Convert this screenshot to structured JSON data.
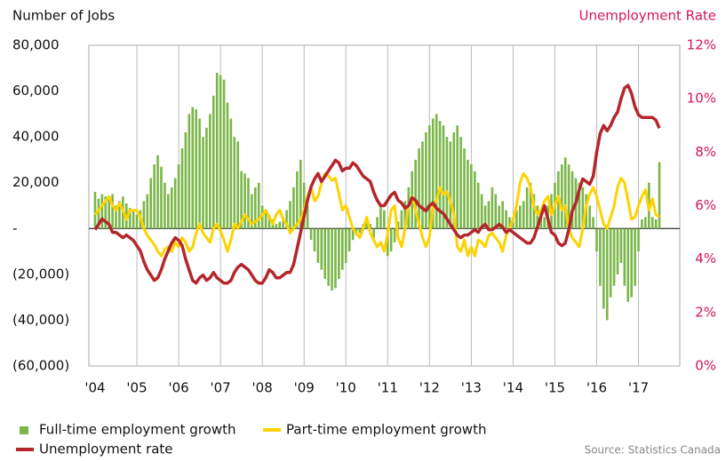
{
  "chart_data": {
    "type": "bar",
    "left_axis_title": "Number of Jobs",
    "right_axis_title": "Unemployment Rate",
    "source": "Source: Statistics Canada",
    "categories": [
      "'04",
      null,
      null,
      null,
      null,
      null,
      null,
      null,
      null,
      null,
      null,
      null,
      "'05",
      null,
      null,
      null,
      null,
      null,
      null,
      null,
      null,
      null,
      null,
      null,
      "'06",
      null,
      null,
      null,
      null,
      null,
      null,
      null,
      null,
      null,
      null,
      null,
      "'07",
      null,
      null,
      null,
      null,
      null,
      null,
      null,
      null,
      null,
      null,
      null,
      "'08",
      null,
      null,
      null,
      null,
      null,
      null,
      null,
      null,
      null,
      null,
      null,
      "'09",
      null,
      null,
      null,
      null,
      null,
      null,
      null,
      null,
      null,
      null,
      null,
      "'10",
      null,
      null,
      null,
      null,
      null,
      null,
      null,
      null,
      null,
      null,
      null,
      "'11",
      null,
      null,
      null,
      null,
      null,
      null,
      null,
      null,
      null,
      null,
      null,
      "'12",
      null,
      null,
      null,
      null,
      null,
      null,
      null,
      null,
      null,
      null,
      null,
      "'13",
      null,
      null,
      null,
      null,
      null,
      null,
      null,
      null,
      null,
      null,
      null,
      "'14",
      null,
      null,
      null,
      null,
      null,
      null,
      null,
      null,
      null,
      null,
      null,
      "'15",
      null,
      null,
      null,
      null,
      null,
      null,
      null,
      null,
      null,
      null,
      null,
      "'16",
      null,
      null,
      null,
      null,
      null,
      null,
      null,
      null,
      null,
      null,
      null,
      "'17",
      null,
      null,
      null,
      null,
      null,
      null
    ],
    "series": [
      {
        "name": "Full-time employment growth",
        "type": "bar",
        "color": "#7ab648",
        "axis": "y",
        "values": [
          16000,
          13000,
          15000,
          14000,
          13000,
          15000,
          10000,
          12000,
          14000,
          11000,
          9000,
          8000,
          6000,
          8000,
          12000,
          15000,
          22000,
          28000,
          32000,
          27000,
          20000,
          15000,
          18000,
          22000,
          28000,
          35000,
          42000,
          50000,
          53000,
          52000,
          48000,
          40000,
          44000,
          50000,
          58000,
          68000,
          67000,
          65000,
          55000,
          48000,
          40000,
          38000,
          25000,
          24000,
          22000,
          15000,
          18000,
          20000,
          10000,
          8000,
          6000,
          4000,
          2000,
          3000,
          5000,
          8000,
          12000,
          18000,
          25000,
          30000,
          20000,
          10000,
          -5000,
          -10000,
          -15000,
          -18000,
          -22000,
          -25000,
          -27000,
          -26000,
          -22000,
          -18000,
          -15000,
          -10000,
          -5000,
          -3000,
          -2000,
          2000,
          3000,
          2000,
          -4000,
          5000,
          10000,
          8000,
          -12000,
          -10000,
          -6000,
          3000,
          8000,
          12000,
          18000,
          25000,
          30000,
          35000,
          38000,
          42000,
          45000,
          48000,
          50000,
          47000,
          45000,
          40000,
          38000,
          42000,
          45000,
          40000,
          35000,
          30000,
          28000,
          25000,
          20000,
          15000,
          10000,
          12000,
          18000,
          15000,
          10000,
          12000,
          8000,
          5000,
          5000,
          8000,
          10000,
          12000,
          18000,
          20000,
          15000,
          10000,
          8000,
          5000,
          10000,
          15000,
          20000,
          25000,
          28000,
          31000,
          28000,
          25000,
          22000,
          20000,
          18000,
          15000,
          10000,
          5000,
          -10000,
          -25000,
          -35000,
          -40000,
          -30000,
          -25000,
          -20000,
          -15000,
          -25000,
          -32000,
          -30000,
          -25000,
          -10000,
          4000,
          5000,
          20000,
          5000,
          4000,
          29000
        ]
      },
      {
        "name": "Part-time employment growth",
        "type": "line",
        "color": "#ffd200",
        "axis": "y",
        "values": [
          6000,
          8000,
          10000,
          12000,
          14000,
          10000,
          8000,
          11000,
          8000,
          4000,
          8000,
          8000,
          8000,
          5000,
          0,
          -3000,
          -5000,
          -7000,
          -10000,
          -12000,
          -9000,
          -8000,
          -10000,
          -6000,
          -8000,
          -4000,
          -6000,
          -10000,
          -8000,
          -2000,
          2000,
          -2000,
          -4000,
          -6000,
          0,
          2000,
          -1000,
          -5000,
          -10000,
          -5000,
          2000,
          0,
          3000,
          6000,
          4000,
          2000,
          3000,
          4000,
          6000,
          8000,
          5000,
          2000,
          6000,
          8000,
          4000,
          2000,
          -2000,
          0,
          2000,
          4000,
          8000,
          14000,
          18000,
          12000,
          14000,
          20000,
          24000,
          23000,
          21000,
          22000,
          15000,
          8000,
          10000,
          5000,
          0,
          -2000,
          -4000,
          0,
          5000,
          -2000,
          -5000,
          -8000,
          -6000,
          -10000,
          -2000,
          8000,
          10000,
          -4000,
          -8000,
          0,
          10000,
          14000,
          8000,
          2000,
          -4000,
          -8000,
          -4000,
          10000,
          12000,
          18000,
          15000,
          16000,
          12000,
          6000,
          -8000,
          -10000,
          -5000,
          -12000,
          -8000,
          -12000,
          -5000,
          -6000,
          -8000,
          -3000,
          -2000,
          -4000,
          -6000,
          -10000,
          -3000,
          0,
          4000,
          10000,
          20000,
          24000,
          22000,
          18000,
          10000,
          6000,
          8000,
          12000,
          14000,
          6000,
          10000,
          14000,
          8000,
          10000,
          0,
          -4000,
          -6000,
          -8000,
          0,
          10000,
          15000,
          18000,
          14000,
          8000,
          2000,
          0,
          5000,
          10000,
          18000,
          22000,
          20000,
          12000,
          4000,
          5000,
          10000,
          14000,
          17000,
          8000,
          13000,
          6000,
          5000
        ]
      },
      {
        "name": "Unemployment rate",
        "type": "line",
        "color": "#b5262b",
        "axis": "y2",
        "values": [
          5.1,
          5.3,
          5.5,
          5.4,
          5.3,
          5.0,
          5.0,
          4.9,
          4.8,
          4.9,
          4.8,
          4.7,
          4.5,
          4.3,
          3.9,
          3.6,
          3.4,
          3.2,
          3.3,
          3.6,
          4.0,
          4.3,
          4.6,
          4.8,
          4.7,
          4.5,
          4.0,
          3.6,
          3.2,
          3.1,
          3.3,
          3.4,
          3.2,
          3.3,
          3.5,
          3.3,
          3.2,
          3.1,
          3.1,
          3.2,
          3.5,
          3.7,
          3.8,
          3.7,
          3.6,
          3.4,
          3.2,
          3.1,
          3.1,
          3.3,
          3.6,
          3.5,
          3.3,
          3.3,
          3.4,
          3.5,
          3.5,
          3.8,
          4.4,
          5.0,
          5.6,
          6.2,
          6.7,
          7.0,
          7.2,
          6.9,
          7.1,
          7.3,
          7.5,
          7.7,
          7.6,
          7.3,
          7.4,
          7.4,
          7.6,
          7.5,
          7.3,
          7.1,
          7.0,
          6.9,
          6.5,
          6.2,
          6.0,
          6.0,
          6.2,
          6.4,
          6.5,
          6.2,
          6.1,
          5.9,
          6.0,
          6.3,
          6.2,
          6.0,
          5.9,
          5.8,
          6.0,
          6.1,
          5.9,
          5.8,
          5.7,
          5.5,
          5.3,
          5.1,
          4.9,
          4.8,
          4.9,
          4.9,
          5.0,
          5.1,
          5.0,
          5.2,
          5.3,
          5.1,
          5.1,
          5.2,
          5.3,
          5.2,
          5.0,
          5.1,
          5.0,
          4.9,
          4.8,
          4.7,
          4.6,
          4.6,
          4.8,
          5.2,
          5.6,
          6.0,
          5.5,
          5.0,
          4.9,
          4.6,
          4.5,
          4.6,
          5.1,
          5.8,
          6.1,
          6.6,
          7.0,
          6.9,
          6.8,
          7.1,
          8.0,
          8.7,
          9.0,
          8.8,
          9.0,
          9.3,
          9.5,
          10.0,
          10.4,
          10.5,
          10.2,
          9.7,
          9.4,
          9.3,
          9.3,
          9.3,
          9.3,
          9.2,
          8.9
        ]
      }
    ],
    "ylim": [
      -60000,
      80000
    ],
    "yticks": [
      {
        "value": -60000,
        "label": "(60,000)"
      },
      {
        "value": -40000,
        "label": "(40,000)"
      },
      {
        "value": -20000,
        "label": "(20,000)"
      },
      {
        "value": 0,
        "label": "-"
      },
      {
        "value": 20000,
        "label": "20,000"
      },
      {
        "value": 40000,
        "label": "40,000"
      },
      {
        "value": 60000,
        "label": "60,000"
      },
      {
        "value": 80000,
        "label": "80,000"
      }
    ],
    "y2lim": [
      0,
      12
    ],
    "y2ticks": [
      {
        "value": 0,
        "label": "0%"
      },
      {
        "value": 2,
        "label": "2%"
      },
      {
        "value": 4,
        "label": "4%"
      },
      {
        "value": 6,
        "label": "6%"
      },
      {
        "value": 8,
        "label": "8%"
      },
      {
        "value": 10,
        "label": "10%"
      },
      {
        "value": 12,
        "label": "12%"
      }
    ],
    "grid": true
  }
}
